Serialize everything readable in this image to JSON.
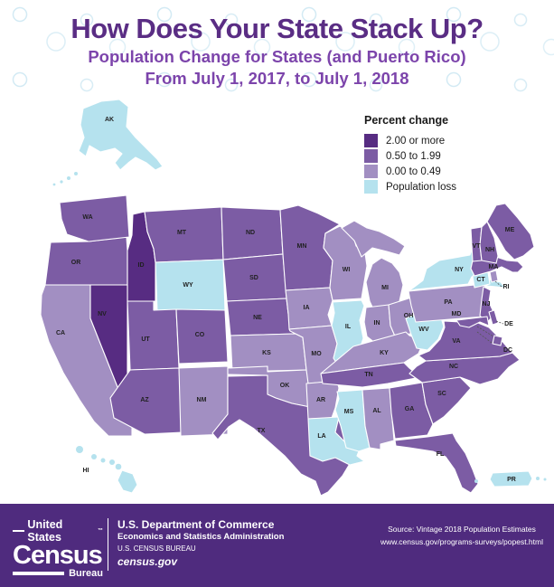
{
  "header": {
    "title": "How Does Your State Stack Up?",
    "subtitle_line1": "Population Change for States (and Puerto Rico)",
    "subtitle_line2": "From July 1, 2017, to July 1, 2018"
  },
  "legend": {
    "title": "Percent change",
    "colors": {
      "dark": "#572C82",
      "medium": "#7C5CA4",
      "light": "#A28FC2",
      "loss": "#B5E2EE"
    },
    "items": [
      {
        "key": "dark",
        "label": "2.00 or more"
      },
      {
        "key": "medium",
        "label": "0.50 to 1.99"
      },
      {
        "key": "light",
        "label": "0.00 to 0.49"
      },
      {
        "key": "loss",
        "label": "Population loss"
      }
    ]
  },
  "map": {
    "states": [
      {
        "abbr": "CA",
        "category": "light"
      },
      {
        "abbr": "OR",
        "category": "medium"
      },
      {
        "abbr": "WA",
        "category": "medium"
      },
      {
        "abbr": "ID",
        "category": "dark"
      },
      {
        "abbr": "NV",
        "category": "dark"
      },
      {
        "abbr": "MT",
        "category": "medium"
      },
      {
        "abbr": "WY",
        "category": "loss"
      },
      {
        "abbr": "UT",
        "category": "medium"
      },
      {
        "abbr": "CO",
        "category": "medium"
      },
      {
        "abbr": "AZ",
        "category": "medium"
      },
      {
        "abbr": "NM",
        "category": "light"
      },
      {
        "abbr": "ND",
        "category": "medium"
      },
      {
        "abbr": "SD",
        "category": "medium"
      },
      {
        "abbr": "NE",
        "category": "medium"
      },
      {
        "abbr": "KS",
        "category": "light"
      },
      {
        "abbr": "OK",
        "category": "light"
      },
      {
        "abbr": "TX",
        "category": "medium"
      },
      {
        "abbr": "MN",
        "category": "medium"
      },
      {
        "abbr": "IA",
        "category": "light"
      },
      {
        "abbr": "MO",
        "category": "light"
      },
      {
        "abbr": "AR",
        "category": "light"
      },
      {
        "abbr": "LA",
        "category": "loss"
      },
      {
        "abbr": "WI",
        "category": "light"
      },
      {
        "abbr": "IL",
        "category": "loss"
      },
      {
        "abbr": "MI",
        "category": "light"
      },
      {
        "abbr": "IN",
        "category": "light"
      },
      {
        "abbr": "OH",
        "category": "light"
      },
      {
        "abbr": "KY",
        "category": "light"
      },
      {
        "abbr": "TN",
        "category": "medium"
      },
      {
        "abbr": "MS",
        "category": "loss"
      },
      {
        "abbr": "AL",
        "category": "light"
      },
      {
        "abbr": "GA",
        "category": "medium"
      },
      {
        "abbr": "FL",
        "category": "medium"
      },
      {
        "abbr": "SC",
        "category": "medium"
      },
      {
        "abbr": "NC",
        "category": "medium"
      },
      {
        "abbr": "VA",
        "category": "medium"
      },
      {
        "abbr": "WV",
        "category": "loss"
      },
      {
        "abbr": "PA",
        "category": "light"
      },
      {
        "abbr": "NY",
        "category": "loss"
      },
      {
        "abbr": "NJ",
        "category": "medium"
      },
      {
        "abbr": "CT",
        "category": "loss"
      },
      {
        "abbr": "RI",
        "category": "light"
      },
      {
        "abbr": "MA",
        "category": "medium"
      },
      {
        "abbr": "VT",
        "category": "medium"
      },
      {
        "abbr": "NH",
        "category": "medium"
      },
      {
        "abbr": "ME",
        "category": "medium"
      },
      {
        "abbr": "MD",
        "category": "medium"
      },
      {
        "abbr": "DE",
        "category": "medium"
      },
      {
        "abbr": "DC",
        "category": "medium"
      },
      {
        "abbr": "AK",
        "category": "loss"
      },
      {
        "abbr": "HI",
        "category": "loss"
      },
      {
        "abbr": "PR",
        "category": "loss"
      }
    ]
  },
  "footer": {
    "logo_line1": "United States",
    "logo_tm": "™",
    "logo_census": "Census",
    "logo_bureau": "Bureau",
    "dept_line1": "U.S. Department of Commerce",
    "dept_line2": "Economics and Statistics Administration",
    "dept_line3": "U.S. CENSUS BUREAU",
    "dept_line4": "census.gov",
    "source_line1": "Source: Vintage 2018 Population Estimates",
    "source_line2": "www.census.gov/programs-surveys/popest.html"
  }
}
